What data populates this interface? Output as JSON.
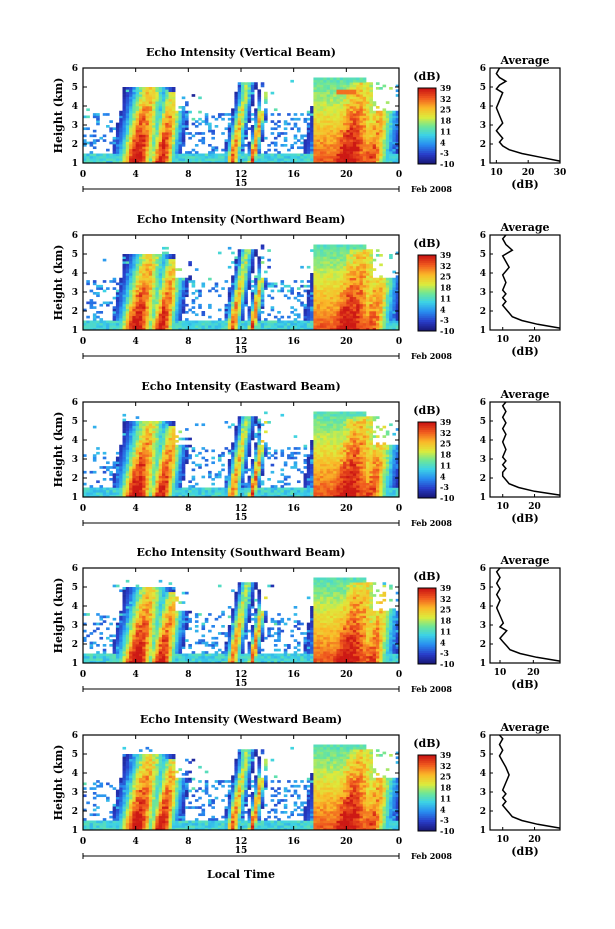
{
  "figure": {
    "date_label": "Feb 2008",
    "day_label": "15",
    "xlabel": "Local Time",
    "ylabel": "Height (km)",
    "cbar_unit": "(dB)",
    "avg_title": "Average",
    "avg_xlabel": "(dB)"
  },
  "chart_data": [
    {
      "type": "heatmap",
      "title": "Echo Intensity (Vertical Beam)",
      "xlabel": "",
      "ylabel": "Height (km)",
      "x_ticks": [
        "0",
        "4",
        "8",
        "12",
        "16",
        "20",
        "0"
      ],
      "xlim": [
        0,
        24
      ],
      "y_ticks": [
        "1",
        "2",
        "3",
        "4",
        "5",
        "6"
      ],
      "ylim": [
        1,
        6
      ],
      "colorbar": {
        "label": "(dB)",
        "ticks": [
          "-10",
          "-3",
          "4",
          "11",
          "18",
          "25",
          "32",
          "39"
        ],
        "range": [
          -10,
          39
        ]
      },
      "average_profile": {
        "title": "Average",
        "xlabel": "(dB)",
        "x_ticks": [
          "10",
          "20",
          "30"
        ],
        "xlim": [
          8,
          30
        ],
        "x": [
          30,
          24,
          18,
          14,
          12,
          11,
          12,
          11,
          10,
          11,
          12,
          11,
          10,
          11,
          12,
          10,
          11,
          13,
          11,
          10,
          11
        ],
        "y": [
          1.1,
          1.3,
          1.5,
          1.7,
          1.9,
          2.1,
          2.3,
          2.5,
          2.7,
          2.9,
          3.1,
          3.5,
          3.9,
          4.3,
          4.7,
          4.9,
          5.1,
          5.3,
          5.5,
          5.7,
          6.0
        ]
      }
    },
    {
      "type": "heatmap",
      "title": "Echo Intensity (Northward Beam)",
      "xlabel": "",
      "ylabel": "Height (km)",
      "x_ticks": [
        "0",
        "4",
        "8",
        "12",
        "16",
        "20",
        "0"
      ],
      "xlim": [
        0,
        24
      ],
      "y_ticks": [
        "1",
        "2",
        "3",
        "4",
        "5",
        "6"
      ],
      "ylim": [
        1,
        6
      ],
      "colorbar": {
        "label": "(dB)",
        "ticks": [
          "-10",
          "-3",
          "4",
          "11",
          "18",
          "25",
          "32",
          "39"
        ],
        "range": [
          -10,
          39
        ]
      },
      "average_profile": {
        "title": "Average",
        "xlabel": "(dB)",
        "x_ticks": [
          "10",
          "20"
        ],
        "xlim": [
          6,
          28
        ],
        "x": [
          28,
          21,
          16,
          13,
          12,
          11,
          10,
          11,
          10,
          11,
          10,
          11,
          10,
          12,
          11,
          10,
          13,
          11,
          10,
          11
        ],
        "y": [
          1.1,
          1.3,
          1.5,
          1.7,
          1.9,
          2.1,
          2.3,
          2.5,
          2.7,
          2.9,
          3.1,
          3.5,
          3.9,
          4.3,
          4.6,
          4.9,
          5.2,
          5.5,
          5.8,
          6.0
        ]
      }
    },
    {
      "type": "heatmap",
      "title": "Echo Intensity (Eastward Beam)",
      "xlabel": "",
      "ylabel": "Height (km)",
      "x_ticks": [
        "0",
        "4",
        "8",
        "12",
        "16",
        "20",
        "0"
      ],
      "xlim": [
        0,
        24
      ],
      "y_ticks": [
        "1",
        "2",
        "3",
        "4",
        "5",
        "6"
      ],
      "ylim": [
        1,
        6
      ],
      "colorbar": {
        "label": "(dB)",
        "ticks": [
          "-10",
          "-3",
          "4",
          "11",
          "18",
          "25",
          "32",
          "39"
        ],
        "range": [
          -10,
          39
        ]
      },
      "average_profile": {
        "title": "Average",
        "xlabel": "(dB)",
        "x_ticks": [
          "10",
          "20"
        ],
        "xlim": [
          6,
          28
        ],
        "x": [
          28,
          20,
          15,
          12,
          11,
          10,
          10,
          11,
          10,
          11,
          10,
          11,
          10,
          11,
          10,
          11,
          10,
          11,
          10,
          11
        ],
        "y": [
          1.1,
          1.3,
          1.5,
          1.7,
          1.9,
          2.1,
          2.3,
          2.5,
          2.7,
          2.9,
          3.1,
          3.5,
          3.9,
          4.3,
          4.6,
          4.9,
          5.2,
          5.5,
          5.8,
          6.0
        ]
      }
    },
    {
      "type": "heatmap",
      "title": "Echo Intensity (Southward Beam)",
      "xlabel": "",
      "ylabel": "Height (km)",
      "x_ticks": [
        "0",
        "4",
        "8",
        "12",
        "16",
        "20",
        "0"
      ],
      "xlim": [
        0,
        24
      ],
      "y_ticks": [
        "1",
        "2",
        "3",
        "4",
        "5",
        "6"
      ],
      "ylim": [
        1,
        6
      ],
      "colorbar": {
        "label": "(dB)",
        "ticks": [
          "-10",
          "-3",
          "4",
          "11",
          "18",
          "25",
          "32",
          "39"
        ],
        "range": [
          -10,
          39
        ]
      },
      "average_profile": {
        "title": "Average",
        "xlabel": "(dB)",
        "x_ticks": [
          "10",
          "20"
        ],
        "xlim": [
          7,
          28
        ],
        "x": [
          28,
          21,
          16,
          13,
          12,
          11,
          10,
          11,
          12,
          10,
          11,
          10,
          9,
          10,
          9,
          10,
          9,
          10,
          9,
          10
        ],
        "y": [
          1.1,
          1.3,
          1.5,
          1.7,
          1.9,
          2.1,
          2.3,
          2.5,
          2.7,
          2.9,
          3.1,
          3.5,
          3.9,
          4.3,
          4.6,
          4.9,
          5.2,
          5.5,
          5.8,
          6.0
        ]
      }
    },
    {
      "type": "heatmap",
      "title": "Echo Intensity (Westward Beam)",
      "xlabel": "Local Time",
      "ylabel": "Height (km)",
      "x_ticks": [
        "0",
        "4",
        "8",
        "12",
        "16",
        "20",
        "0"
      ],
      "xlim": [
        0,
        24
      ],
      "y_ticks": [
        "1",
        "2",
        "3",
        "4",
        "5",
        "6"
      ],
      "ylim": [
        1,
        6
      ],
      "colorbar": {
        "label": "(dB)",
        "ticks": [
          "-10",
          "-3",
          "4",
          "11",
          "18",
          "25",
          "32",
          "39"
        ],
        "range": [
          -10,
          39
        ]
      },
      "average_profile": {
        "title": "Average",
        "xlabel": "(dB)",
        "x_ticks": [
          "10",
          "20"
        ],
        "xlim": [
          6,
          28
        ],
        "x": [
          28,
          21,
          16,
          13,
          12,
          11,
          10,
          11,
          10,
          11,
          10,
          11,
          12,
          11,
          10,
          9,
          10,
          9,
          10,
          9
        ],
        "y": [
          1.1,
          1.3,
          1.5,
          1.7,
          1.9,
          2.1,
          2.3,
          2.5,
          2.7,
          2.9,
          3.1,
          3.5,
          3.9,
          4.3,
          4.6,
          4.9,
          5.2,
          5.5,
          5.8,
          6.0
        ]
      }
    }
  ]
}
